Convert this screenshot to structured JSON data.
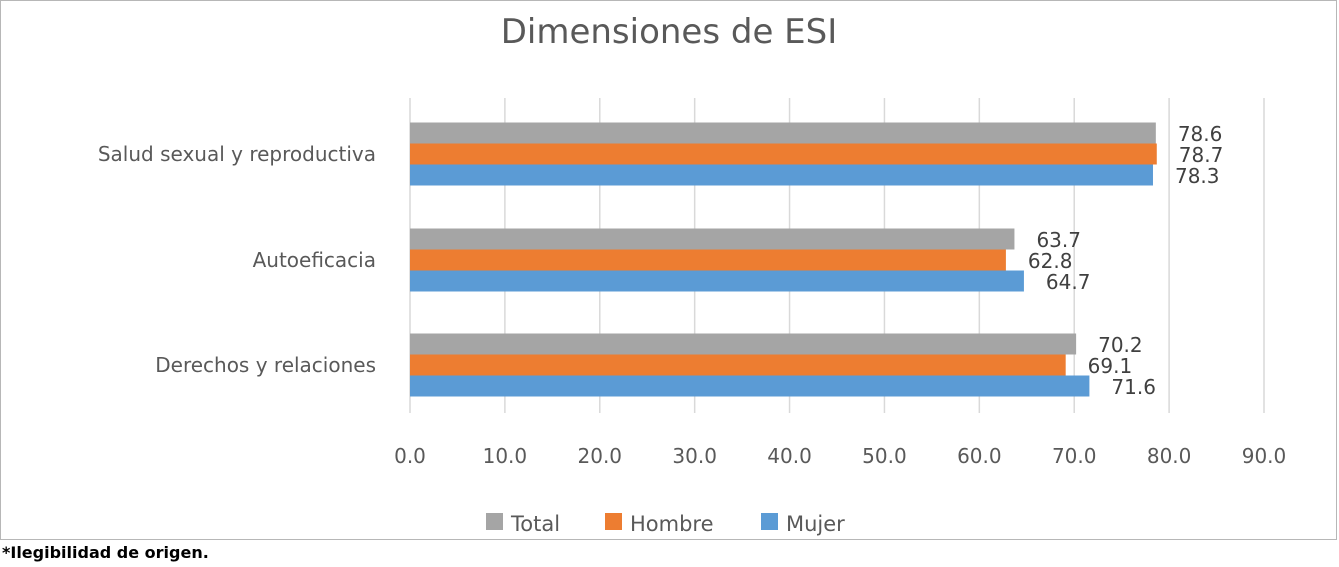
{
  "chart_data": {
    "type": "bar",
    "orientation": "horizontal",
    "title": "Dimensiones de ESI",
    "xlabel": "",
    "ylabel": "",
    "xlim": [
      0,
      90
    ],
    "x_ticks": [
      "0.0",
      "10.0",
      "20.0",
      "30.0",
      "40.0",
      "50.0",
      "60.0",
      "70.0",
      "80.0",
      "90.0"
    ],
    "grid": "vertical",
    "legend_position": "bottom",
    "categories": [
      "Salud sexual y reproductiva",
      "Autoeficacia",
      "Derechos y relaciones"
    ],
    "series": [
      {
        "name": "Total",
        "color": "#a5a5a5",
        "values": [
          78.6,
          63.7,
          70.2
        ],
        "labels": [
          "78.6",
          "63.7",
          "70.2"
        ]
      },
      {
        "name": "Hombre",
        "color": "#ed7d31",
        "values": [
          78.7,
          62.8,
          69.1
        ],
        "labels": [
          "78.7",
          "62.8",
          "69.1"
        ]
      },
      {
        "name": "Mujer",
        "color": "#5b9bd5",
        "values": [
          78.3,
          64.7,
          71.6
        ],
        "labels": [
          "78.3",
          "64.7",
          "71.6"
        ]
      }
    ]
  },
  "footnote": "*Ilegibilidad de origen."
}
